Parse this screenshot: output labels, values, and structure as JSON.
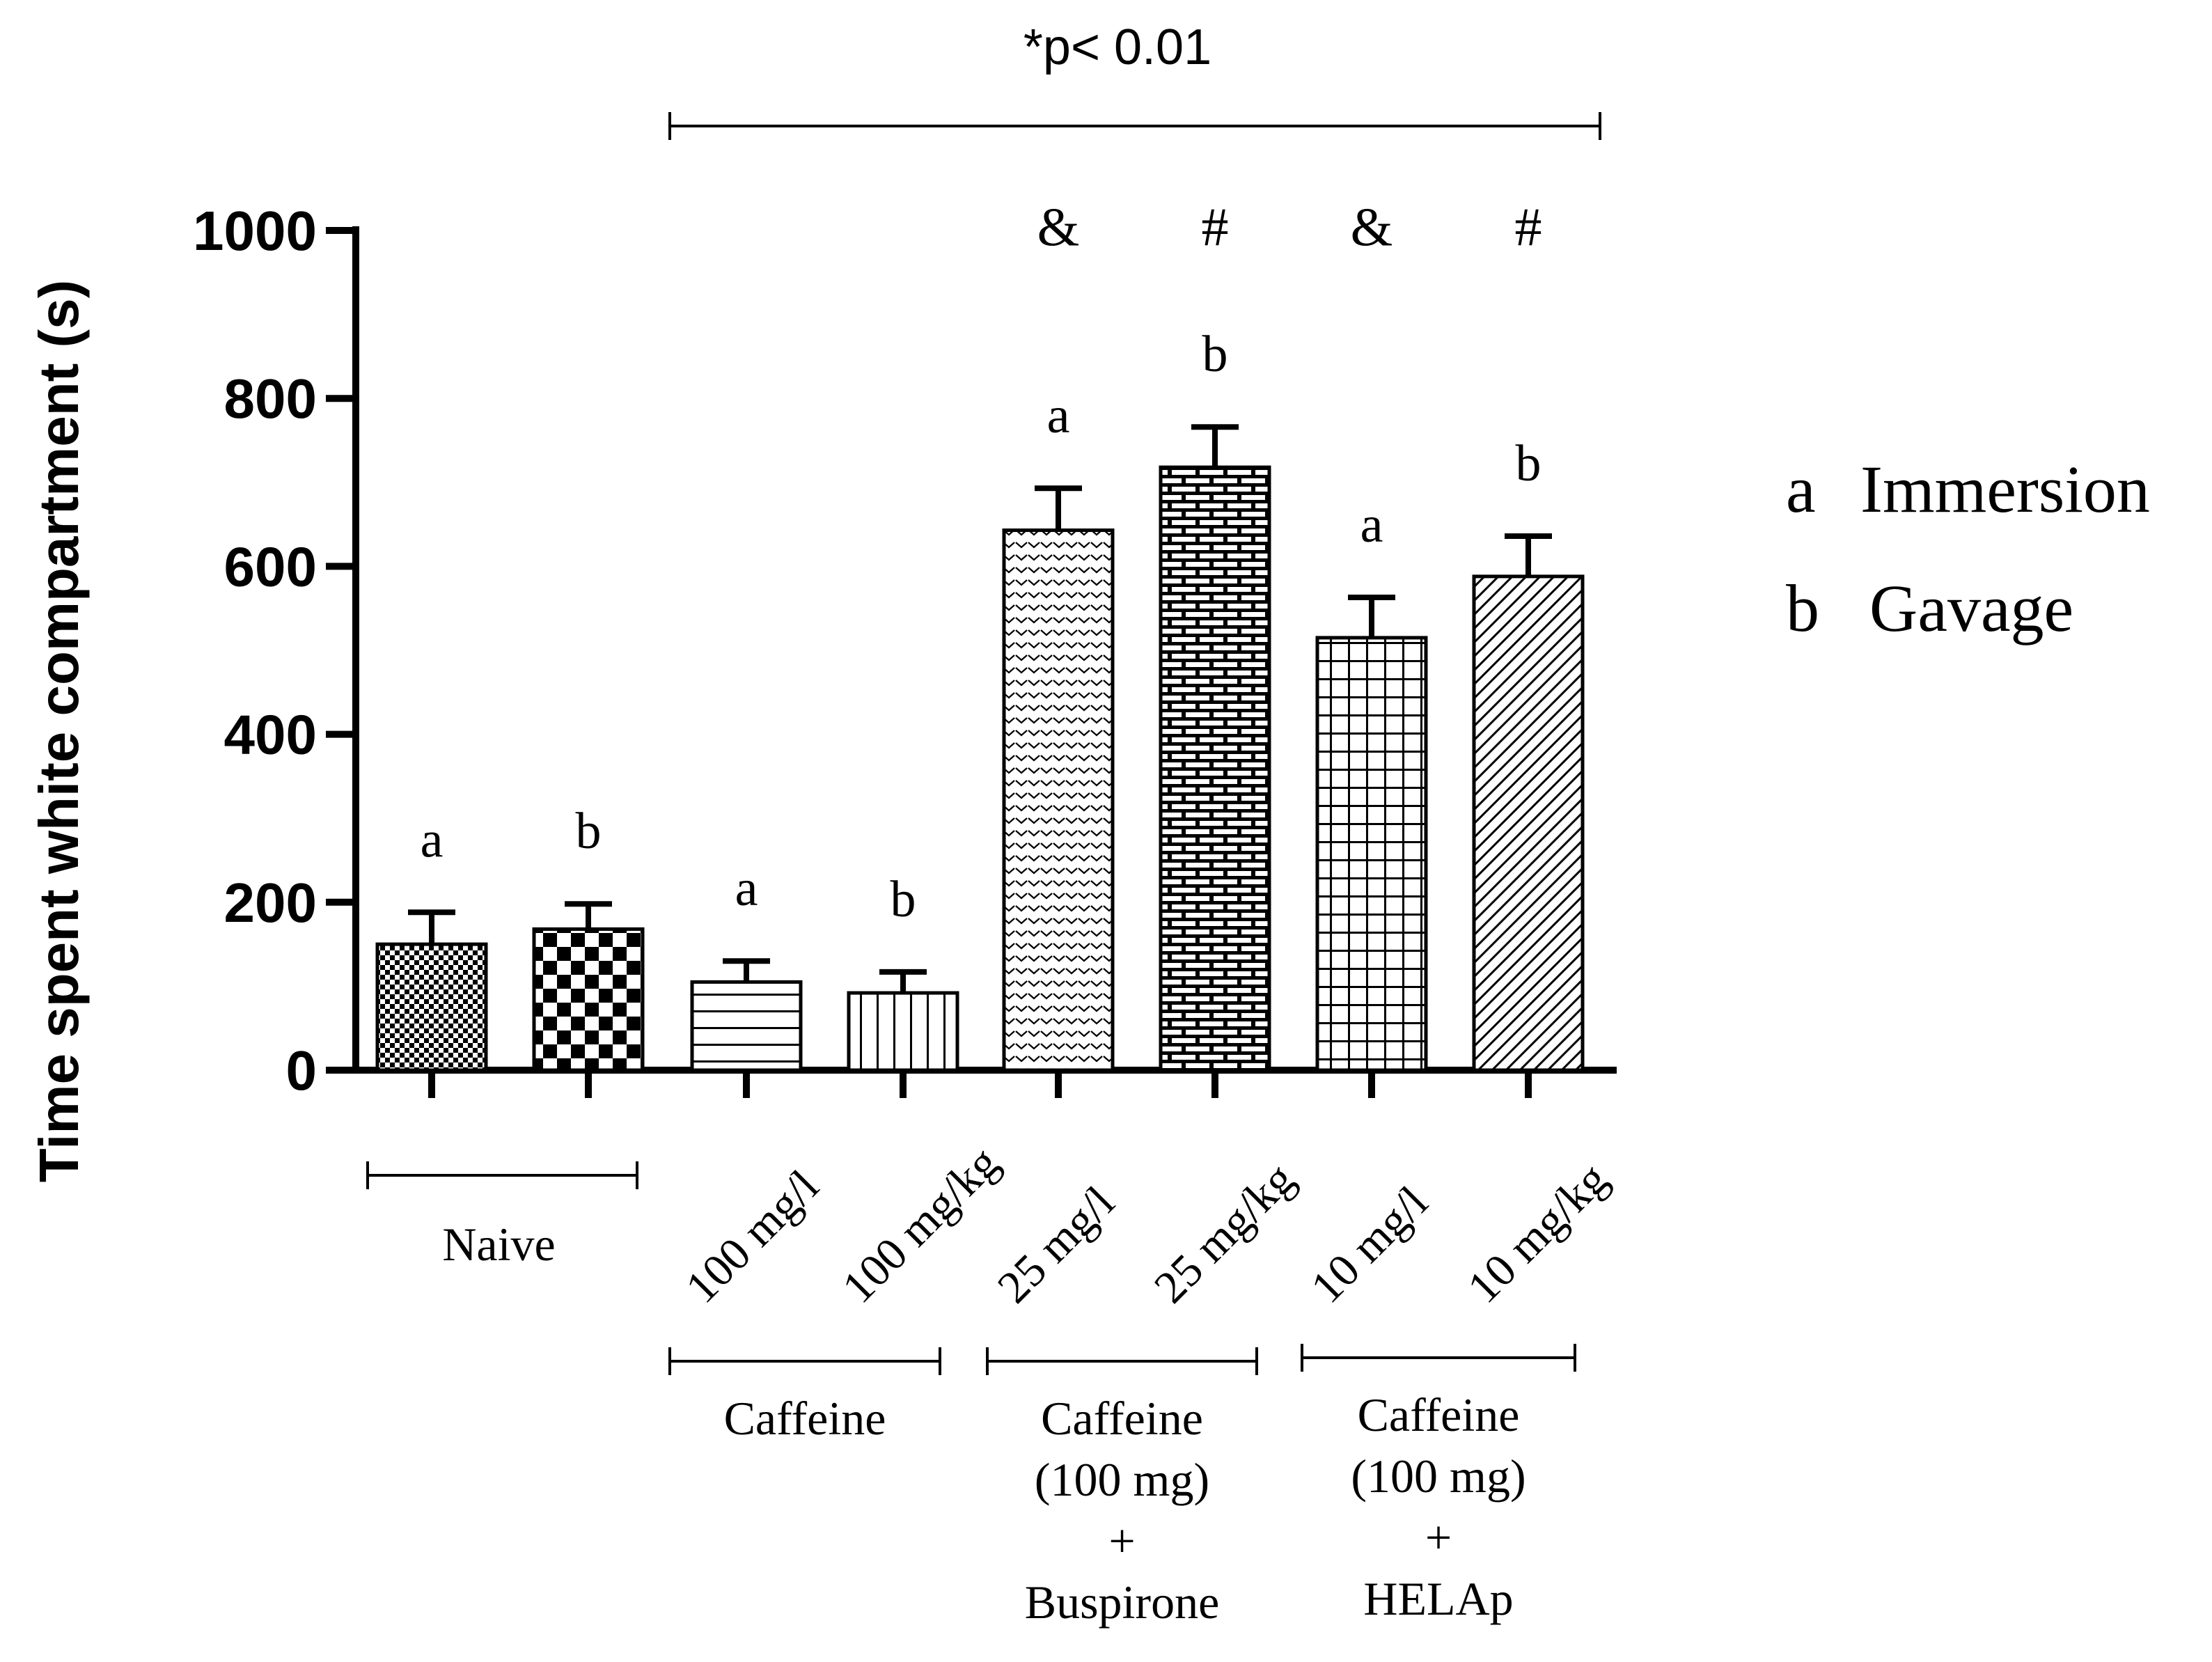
{
  "chart_data": {
    "type": "bar",
    "ylabel": "Time spent white compartment (s)",
    "ylim": [
      0,
      1000
    ],
    "yticks": [
      0,
      200,
      400,
      600,
      800,
      1000
    ],
    "grid": false,
    "categories": [
      "",
      "",
      "100 mg/l",
      "100 mg/kg",
      "25 mg/l",
      "25 mg/kg",
      "10 mg/l",
      "10 mg/kg"
    ],
    "values": [
      150,
      168,
      105,
      92,
      643,
      718,
      515,
      588
    ],
    "errors": [
      38,
      30,
      25,
      25,
      50,
      48,
      48,
      48
    ],
    "bar_letters": [
      "a",
      "b",
      "a",
      "b",
      "a",
      "b",
      "a",
      "b"
    ],
    "significance_marks": [
      "",
      "",
      "",
      "",
      "&",
      "#",
      "&",
      "#"
    ],
    "bar_patterns": [
      "fine-check",
      "checkerboard",
      "horizontal-lines",
      "vertical-lines",
      "chevron-dots",
      "brick",
      "grid",
      "diagonal-hatch"
    ],
    "groups": [
      {
        "label_lines": [
          "Naive"
        ],
        "bars": [
          0,
          1
        ]
      },
      {
        "label_lines": [
          "Caffeine"
        ],
        "bars": [
          2,
          3
        ]
      },
      {
        "label_lines": [
          "Caffeine",
          "(100 mg)",
          "+",
          "Buspirone"
        ],
        "bars": [
          4,
          5
        ]
      },
      {
        "label_lines": [
          "Caffeine",
          "(100 mg)",
          "+",
          "HELAp"
        ],
        "bars": [
          6,
          7
        ]
      }
    ],
    "annotation": "*p< 0.01",
    "legend": {
      "placement": "right",
      "entries": [
        {
          "letter": "a",
          "label": "Immersion"
        },
        {
          "letter": "b",
          "label": "Gavage"
        }
      ]
    }
  }
}
